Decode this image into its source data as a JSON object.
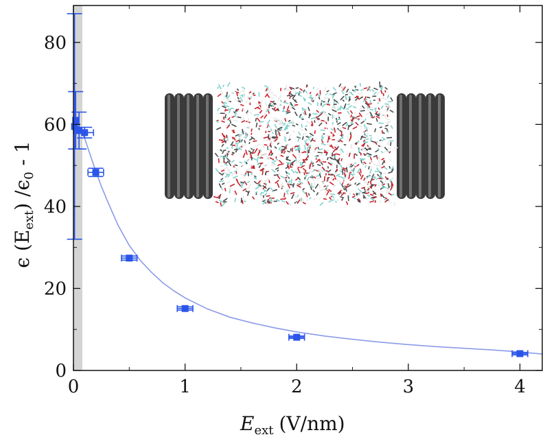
{
  "chart_data": {
    "type": "scatter",
    "xlabel": {
      "main": "E",
      "sub": "ext",
      "unit": "(V/nm)"
    },
    "ylabel": {
      "prefix": "ϵ (E",
      "sub": "ext",
      "mid": ") /ϵ",
      "sub0": "0",
      "suffix": " - 1"
    },
    "xlim": [
      0,
      4.2
    ],
    "ylim": [
      0,
      89
    ],
    "xticks": [
      0,
      1,
      2,
      3,
      4
    ],
    "yticks": [
      0,
      20,
      40,
      60,
      80
    ],
    "grid": false,
    "shaded_region": {
      "x": [
        0,
        0.08
      ],
      "color": "#d4d4d4"
    },
    "marker_color": "#2a55e8",
    "fit_color": "#8a9be8",
    "points": [
      {
        "x": 0.01,
        "y": 59.5,
        "yerr": 27.5,
        "xerr": 0.0
      },
      {
        "x": 0.02,
        "y": 61.0,
        "yerr": 7.0,
        "xerr": 0.0
      },
      {
        "x": 0.05,
        "y": 58.5,
        "yerr": 4.5,
        "xerr": 0.05
      },
      {
        "x": 0.1,
        "y": 58.0,
        "yerr": 1.3,
        "xerr": 0.08
      },
      {
        "x": 0.2,
        "y": 48.3,
        "yerr": 1.0,
        "xerr": 0.07
      },
      {
        "x": 0.5,
        "y": 27.4,
        "yerr": 0.5,
        "xerr": 0.07
      },
      {
        "x": 1.0,
        "y": 15.1,
        "yerr": 0.4,
        "xerr": 0.07
      },
      {
        "x": 2.0,
        "y": 8.1,
        "yerr": 0.3,
        "xerr": 0.07
      },
      {
        "x": 4.0,
        "y": 4.1,
        "yerr": 0.3,
        "xerr": 0.07
      }
    ],
    "fit_series": {
      "x": [
        0.08,
        0.1,
        0.15,
        0.2,
        0.25,
        0.3,
        0.4,
        0.5,
        0.6,
        0.7,
        0.8,
        0.9,
        1.0,
        1.2,
        1.4,
        1.6,
        1.8,
        2.0,
        2.25,
        2.5,
        2.75,
        3.0,
        3.25,
        3.5,
        3.75,
        4.0,
        4.2
      ],
      "y": [
        58.0,
        56.6,
        52.6,
        48.6,
        44.9,
        41.6,
        35.4,
        30.5,
        26.8,
        23.9,
        21.4,
        19.4,
        17.7,
        15.0,
        13.0,
        11.6,
        10.4,
        9.4,
        8.4,
        7.6,
        6.9,
        6.3,
        5.8,
        5.4,
        5.0,
        4.5,
        4.0
      ]
    },
    "inset": {
      "description_type": "molecular-simulation-render",
      "wall_color": "#3a3a3a",
      "water_colors": [
        "#7fd1cc",
        "#c8202a",
        "#e9e9e9",
        "#4a4a4a"
      ]
    }
  }
}
